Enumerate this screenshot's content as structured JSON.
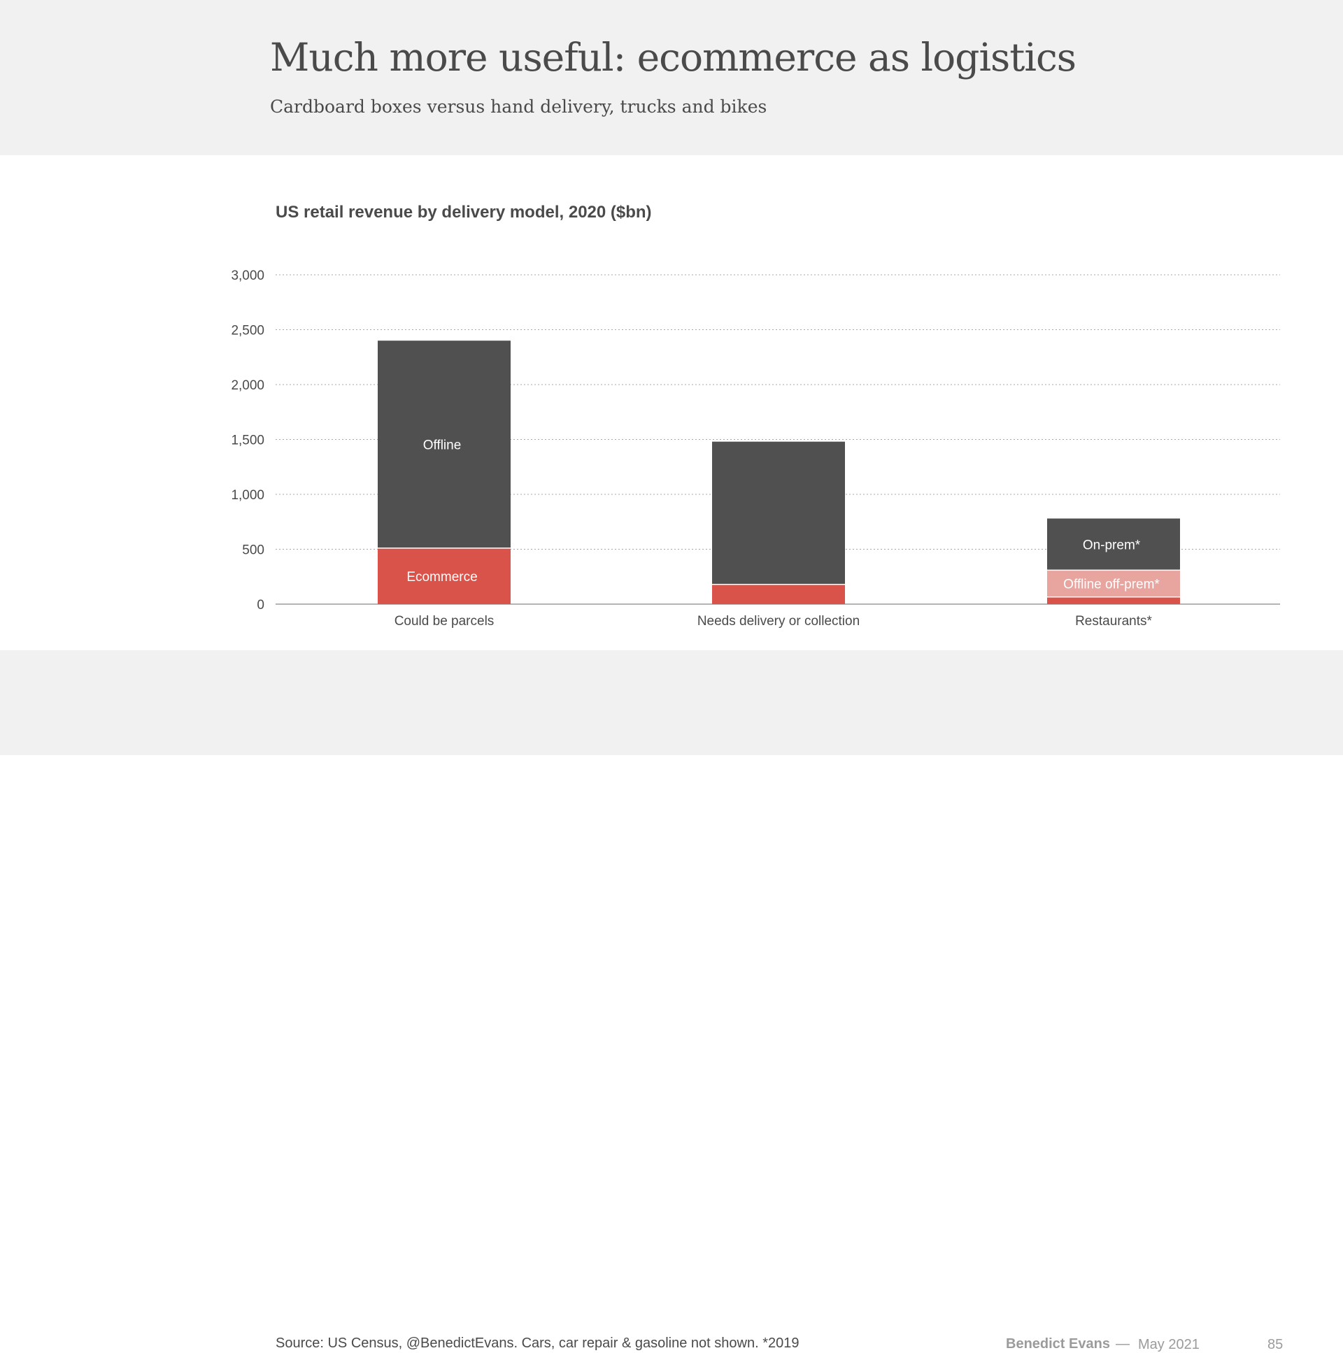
{
  "slide": {
    "title": "Much more useful: ecommerce as logistics",
    "subtitle": "Cardboard boxes versus hand delivery, trucks and bikes"
  },
  "footer": {
    "source": "Source: US Census, @BenedictEvans. Cars, car repair & gasoline not shown. *2019",
    "author": "Benedict Evans",
    "separator": "—",
    "date": "May 2021",
    "page_number": "85"
  },
  "colors": {
    "offline": "#505050",
    "ecommerce": "#d9534a",
    "offline_off_prem": "#e8a5a0",
    "gridline": "#a8a8a8",
    "axis": "#9b9b9b"
  },
  "chart_data": {
    "type": "bar",
    "stacked": true,
    "title": "US retail revenue by delivery model, 2020 ($bn)",
    "xlabel": "",
    "ylabel": "",
    "ylim": [
      0,
      3000
    ],
    "yticks": [
      0,
      500,
      1000,
      1500,
      2000,
      2500,
      3000
    ],
    "ytick_labels": [
      "0",
      "500",
      "1,000",
      "1,500",
      "2,000",
      "2,500",
      "3,000"
    ],
    "grid": true,
    "legend": "none",
    "categories": [
      "Could be parcels",
      "Needs delivery or collection",
      "Restaurants*"
    ],
    "bars": [
      {
        "category": "Could be parcels",
        "segments": [
          {
            "label": "Ecommerce",
            "value": 510,
            "color": "#d9534a",
            "show_label": true
          },
          {
            "label": "Offline",
            "value": 1890,
            "color": "#505050",
            "show_label": true
          }
        ]
      },
      {
        "category": "Needs delivery or collection",
        "segments": [
          {
            "label": "",
            "value": 180,
            "color": "#d9534a",
            "show_label": false
          },
          {
            "label": "",
            "value": 1300,
            "color": "#505050",
            "show_label": false
          }
        ]
      },
      {
        "category": "Restaurants*",
        "segments": [
          {
            "label": "",
            "value": 65,
            "color": "#d9534a",
            "show_label": false
          },
          {
            "label": "Offline off-prem*",
            "value": 245,
            "color": "#e8a5a0",
            "show_label": true
          },
          {
            "label": "On-prem*",
            "value": 470,
            "color": "#505050",
            "show_label": true
          }
        ]
      }
    ]
  }
}
